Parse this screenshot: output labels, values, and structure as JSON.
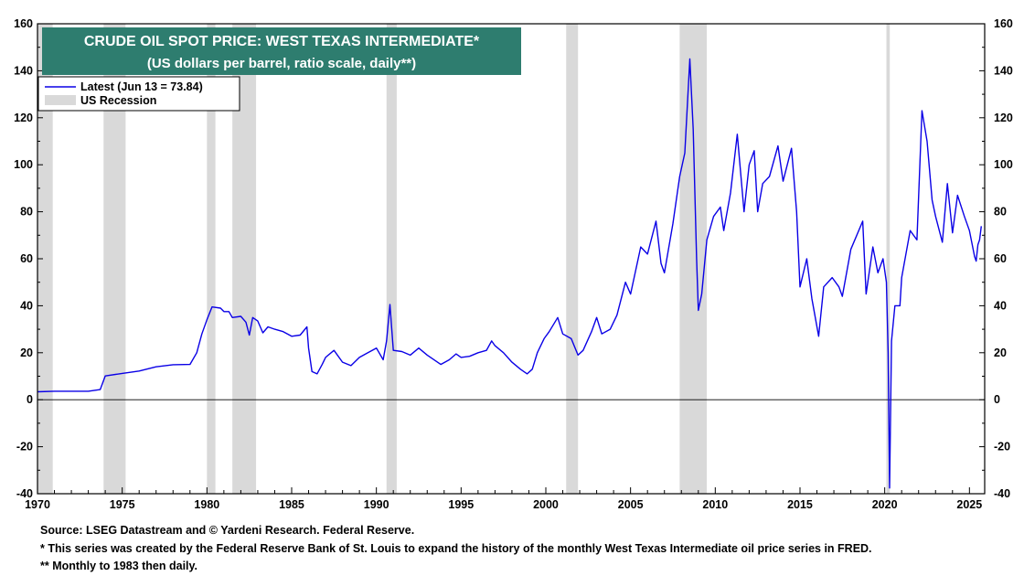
{
  "chart_data": {
    "type": "line",
    "title": "CRUDE OIL SPOT PRICE: WEST TEXAS INTERMEDIATE*",
    "subtitle": "(US dollars per barrel, ratio scale, daily**)",
    "xlabel": "",
    "ylabel": "",
    "xlim": [
      1970,
      2025.9
    ],
    "ylim": [
      -40,
      160
    ],
    "x_ticks": [
      "1970",
      "1975",
      "1980",
      "1985",
      "1990",
      "1995",
      "2000",
      "2005",
      "2010",
      "2015",
      "2020",
      "2025"
    ],
    "y_ticks": [
      "160",
      "140",
      "120",
      "100",
      "80",
      "60",
      "40",
      "20",
      "0",
      "-20",
      "-40"
    ],
    "grid": false,
    "legend_position": "top-left",
    "legend": [
      {
        "label": "Latest (Jun 13 = 73.84)",
        "kind": "line",
        "color": "#0a00e6"
      },
      {
        "label": "US Recession",
        "kind": "box",
        "color": "#d9d9d9"
      }
    ],
    "recessions": [
      [
        1970.0,
        1970.9
      ],
      [
        1973.9,
        1975.2
      ],
      [
        1980.0,
        1980.5
      ],
      [
        1981.5,
        1982.9
      ],
      [
        1990.6,
        1991.2
      ],
      [
        2001.2,
        2001.9
      ],
      [
        2007.9,
        2009.5
      ],
      [
        2020.1,
        2020.3
      ]
    ],
    "series": [
      {
        "name": "Latest (Jun 13 = 73.84)",
        "color": "#0a00e6",
        "points": [
          [
            1970.0,
            3.4
          ],
          [
            1971.0,
            3.6
          ],
          [
            1972.0,
            3.6
          ],
          [
            1973.0,
            3.6
          ],
          [
            1973.7,
            4.3
          ],
          [
            1974.0,
            10.1
          ],
          [
            1975.0,
            11.2
          ],
          [
            1976.0,
            12.2
          ],
          [
            1977.0,
            14.0
          ],
          [
            1978.0,
            14.9
          ],
          [
            1979.0,
            15.0
          ],
          [
            1979.4,
            20.0
          ],
          [
            1979.7,
            28.0
          ],
          [
            1980.0,
            34.0
          ],
          [
            1980.3,
            39.5
          ],
          [
            1980.8,
            39.0
          ],
          [
            1981.0,
            37.5
          ],
          [
            1981.3,
            37.5
          ],
          [
            1981.5,
            35.0
          ],
          [
            1982.0,
            35.5
          ],
          [
            1982.3,
            33.0
          ],
          [
            1982.5,
            27.5
          ],
          [
            1982.7,
            35.0
          ],
          [
            1983.0,
            33.5
          ],
          [
            1983.3,
            28.5
          ],
          [
            1983.6,
            31.0
          ],
          [
            1984.0,
            30.0
          ],
          [
            1984.5,
            29.0
          ],
          [
            1985.0,
            27.0
          ],
          [
            1985.5,
            27.5
          ],
          [
            1985.9,
            31.0
          ],
          [
            1986.0,
            22.0
          ],
          [
            1986.2,
            12.0
          ],
          [
            1986.5,
            11.0
          ],
          [
            1986.8,
            15.0
          ],
          [
            1987.0,
            18.0
          ],
          [
            1987.5,
            21.0
          ],
          [
            1988.0,
            16.0
          ],
          [
            1988.5,
            14.5
          ],
          [
            1989.0,
            18.0
          ],
          [
            1989.5,
            20.0
          ],
          [
            1990.0,
            22.0
          ],
          [
            1990.4,
            17.0
          ],
          [
            1990.6,
            25.0
          ],
          [
            1990.8,
            40.5
          ],
          [
            1991.0,
            21.0
          ],
          [
            1991.5,
            20.5
          ],
          [
            1992.0,
            19.0
          ],
          [
            1992.5,
            22.0
          ],
          [
            1993.0,
            19.0
          ],
          [
            1993.8,
            15.0
          ],
          [
            1994.3,
            17.0
          ],
          [
            1994.7,
            19.5
          ],
          [
            1995.0,
            18.0
          ],
          [
            1995.5,
            18.5
          ],
          [
            1996.0,
            20.0
          ],
          [
            1996.5,
            21.0
          ],
          [
            1996.8,
            25.0
          ],
          [
            1997.0,
            23.0
          ],
          [
            1997.5,
            20.0
          ],
          [
            1998.0,
            16.0
          ],
          [
            1998.5,
            13.0
          ],
          [
            1998.9,
            11.0
          ],
          [
            1999.2,
            13.0
          ],
          [
            1999.5,
            20.0
          ],
          [
            1999.9,
            26.0
          ],
          [
            2000.2,
            29.0
          ],
          [
            2000.7,
            35.0
          ],
          [
            2001.0,
            28.0
          ],
          [
            2001.5,
            26.0
          ],
          [
            2001.9,
            19.0
          ],
          [
            2002.2,
            21.0
          ],
          [
            2002.7,
            29.0
          ],
          [
            2003.0,
            35.0
          ],
          [
            2003.3,
            28.0
          ],
          [
            2003.8,
            30.0
          ],
          [
            2004.2,
            36.0
          ],
          [
            2004.7,
            50.0
          ],
          [
            2005.0,
            45.0
          ],
          [
            2005.6,
            65.0
          ],
          [
            2006.0,
            62.0
          ],
          [
            2006.5,
            76.0
          ],
          [
            2006.8,
            58.0
          ],
          [
            2007.0,
            54.0
          ],
          [
            2007.5,
            75.0
          ],
          [
            2007.9,
            95.0
          ],
          [
            2008.2,
            105.0
          ],
          [
            2008.5,
            145.0
          ],
          [
            2008.7,
            115.0
          ],
          [
            2008.9,
            60.0
          ],
          [
            2009.0,
            38.0
          ],
          [
            2009.2,
            45.0
          ],
          [
            2009.5,
            68.0
          ],
          [
            2009.9,
            78.0
          ],
          [
            2010.3,
            82.0
          ],
          [
            2010.5,
            72.0
          ],
          [
            2010.9,
            88.0
          ],
          [
            2011.3,
            113.0
          ],
          [
            2011.7,
            80.0
          ],
          [
            2012.0,
            100.0
          ],
          [
            2012.3,
            106.0
          ],
          [
            2012.5,
            80.0
          ],
          [
            2012.8,
            92.0
          ],
          [
            2013.2,
            95.0
          ],
          [
            2013.7,
            108.0
          ],
          [
            2014.0,
            93.0
          ],
          [
            2014.5,
            107.0
          ],
          [
            2014.8,
            80.0
          ],
          [
            2015.0,
            48.0
          ],
          [
            2015.4,
            60.0
          ],
          [
            2015.7,
            43.0
          ],
          [
            2016.1,
            27.0
          ],
          [
            2016.4,
            48.0
          ],
          [
            2016.9,
            52.0
          ],
          [
            2017.3,
            48.0
          ],
          [
            2017.5,
            44.0
          ],
          [
            2018.0,
            64.0
          ],
          [
            2018.7,
            76.0
          ],
          [
            2018.9,
            45.0
          ],
          [
            2019.3,
            65.0
          ],
          [
            2019.6,
            54.0
          ],
          [
            2019.9,
            60.0
          ],
          [
            2020.1,
            50.0
          ],
          [
            2020.2,
            20.0
          ],
          [
            2020.29,
            -37.6
          ],
          [
            2020.4,
            25.0
          ],
          [
            2020.6,
            40.0
          ],
          [
            2020.9,
            40.0
          ],
          [
            2021.0,
            52.0
          ],
          [
            2021.5,
            72.0
          ],
          [
            2021.9,
            68.0
          ],
          [
            2022.2,
            123.0
          ],
          [
            2022.5,
            110.0
          ],
          [
            2022.8,
            85.0
          ],
          [
            2023.0,
            78.0
          ],
          [
            2023.4,
            67.0
          ],
          [
            2023.7,
            92.0
          ],
          [
            2024.0,
            71.0
          ],
          [
            2024.3,
            87.0
          ],
          [
            2024.7,
            78.0
          ],
          [
            2025.0,
            72.0
          ],
          [
            2025.3,
            61.0
          ],
          [
            2025.4,
            59.0
          ],
          [
            2025.5,
            66.0
          ],
          [
            2025.6,
            68.0
          ],
          [
            2025.7,
            73.84
          ]
        ]
      }
    ]
  },
  "footer": {
    "source": "Source: LSEG Datastream and © Yardeni Research. Federal Reserve.",
    "note1": "* This series was created by the Federal Reserve Bank of St. Louis to expand the history of the monthly West Texas Intermediate oil price series in FRED.",
    "note2": "** Monthly to 1983 then daily."
  },
  "colors": {
    "line": "#0a00e6",
    "recession": "#d9d9d9",
    "title_bg": "#2e7d6f",
    "axis": "#000000"
  }
}
